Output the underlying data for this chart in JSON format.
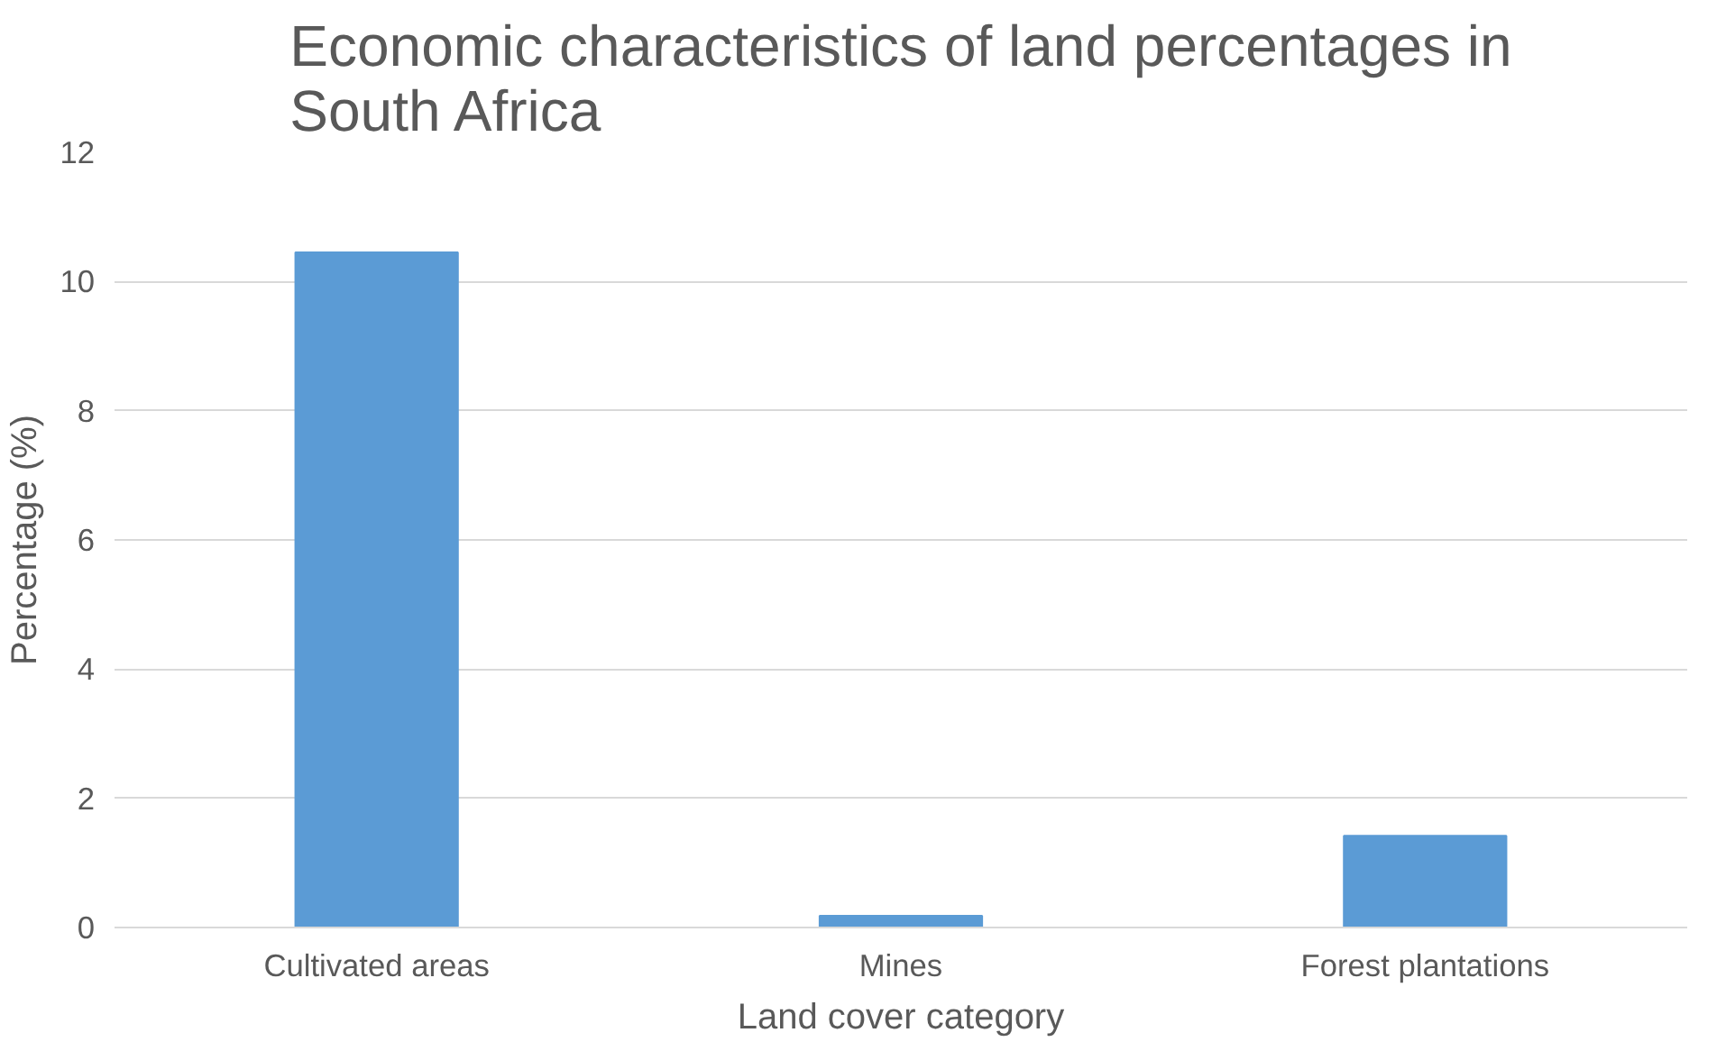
{
  "chart_data": {
    "type": "bar",
    "title": "Economic characteristics of land percentages in South Africa",
    "xlabel": "Land cover category",
    "ylabel": "Percentage (%)",
    "categories": [
      "Cultivated areas",
      "Mines",
      "Forest plantations"
    ],
    "values": [
      10.45,
      0.18,
      1.42
    ],
    "color": "#5b9bd5",
    "ylim": [
      0,
      12
    ],
    "yticks": [
      0,
      2,
      4,
      6,
      8,
      10,
      12
    ],
    "grid": "y"
  }
}
